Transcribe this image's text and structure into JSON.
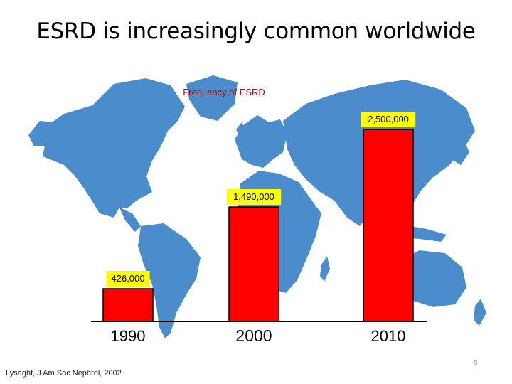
{
  "slide": {
    "title": "ESRD is increasingly common worldwide",
    "citation": "Lysaght, J Am Soc Nephrol, 2002",
    "slide_number": "5"
  },
  "colors": {
    "bar": "#ff0000",
    "map": "#4a8ccc",
    "label_bg": "#ffff00",
    "baseline": "#000000"
  },
  "chart_data": {
    "type": "bar",
    "title": "Frequency of ESRD",
    "categories": [
      "1990",
      "2000",
      "2010"
    ],
    "values": [
      426000,
      1490000,
      2500000
    ],
    "data_labels": [
      "426,000",
      "1,490,000",
      "2,500,000"
    ],
    "ylim": [
      0,
      2500000
    ],
    "grid": false,
    "background": "world-map"
  }
}
